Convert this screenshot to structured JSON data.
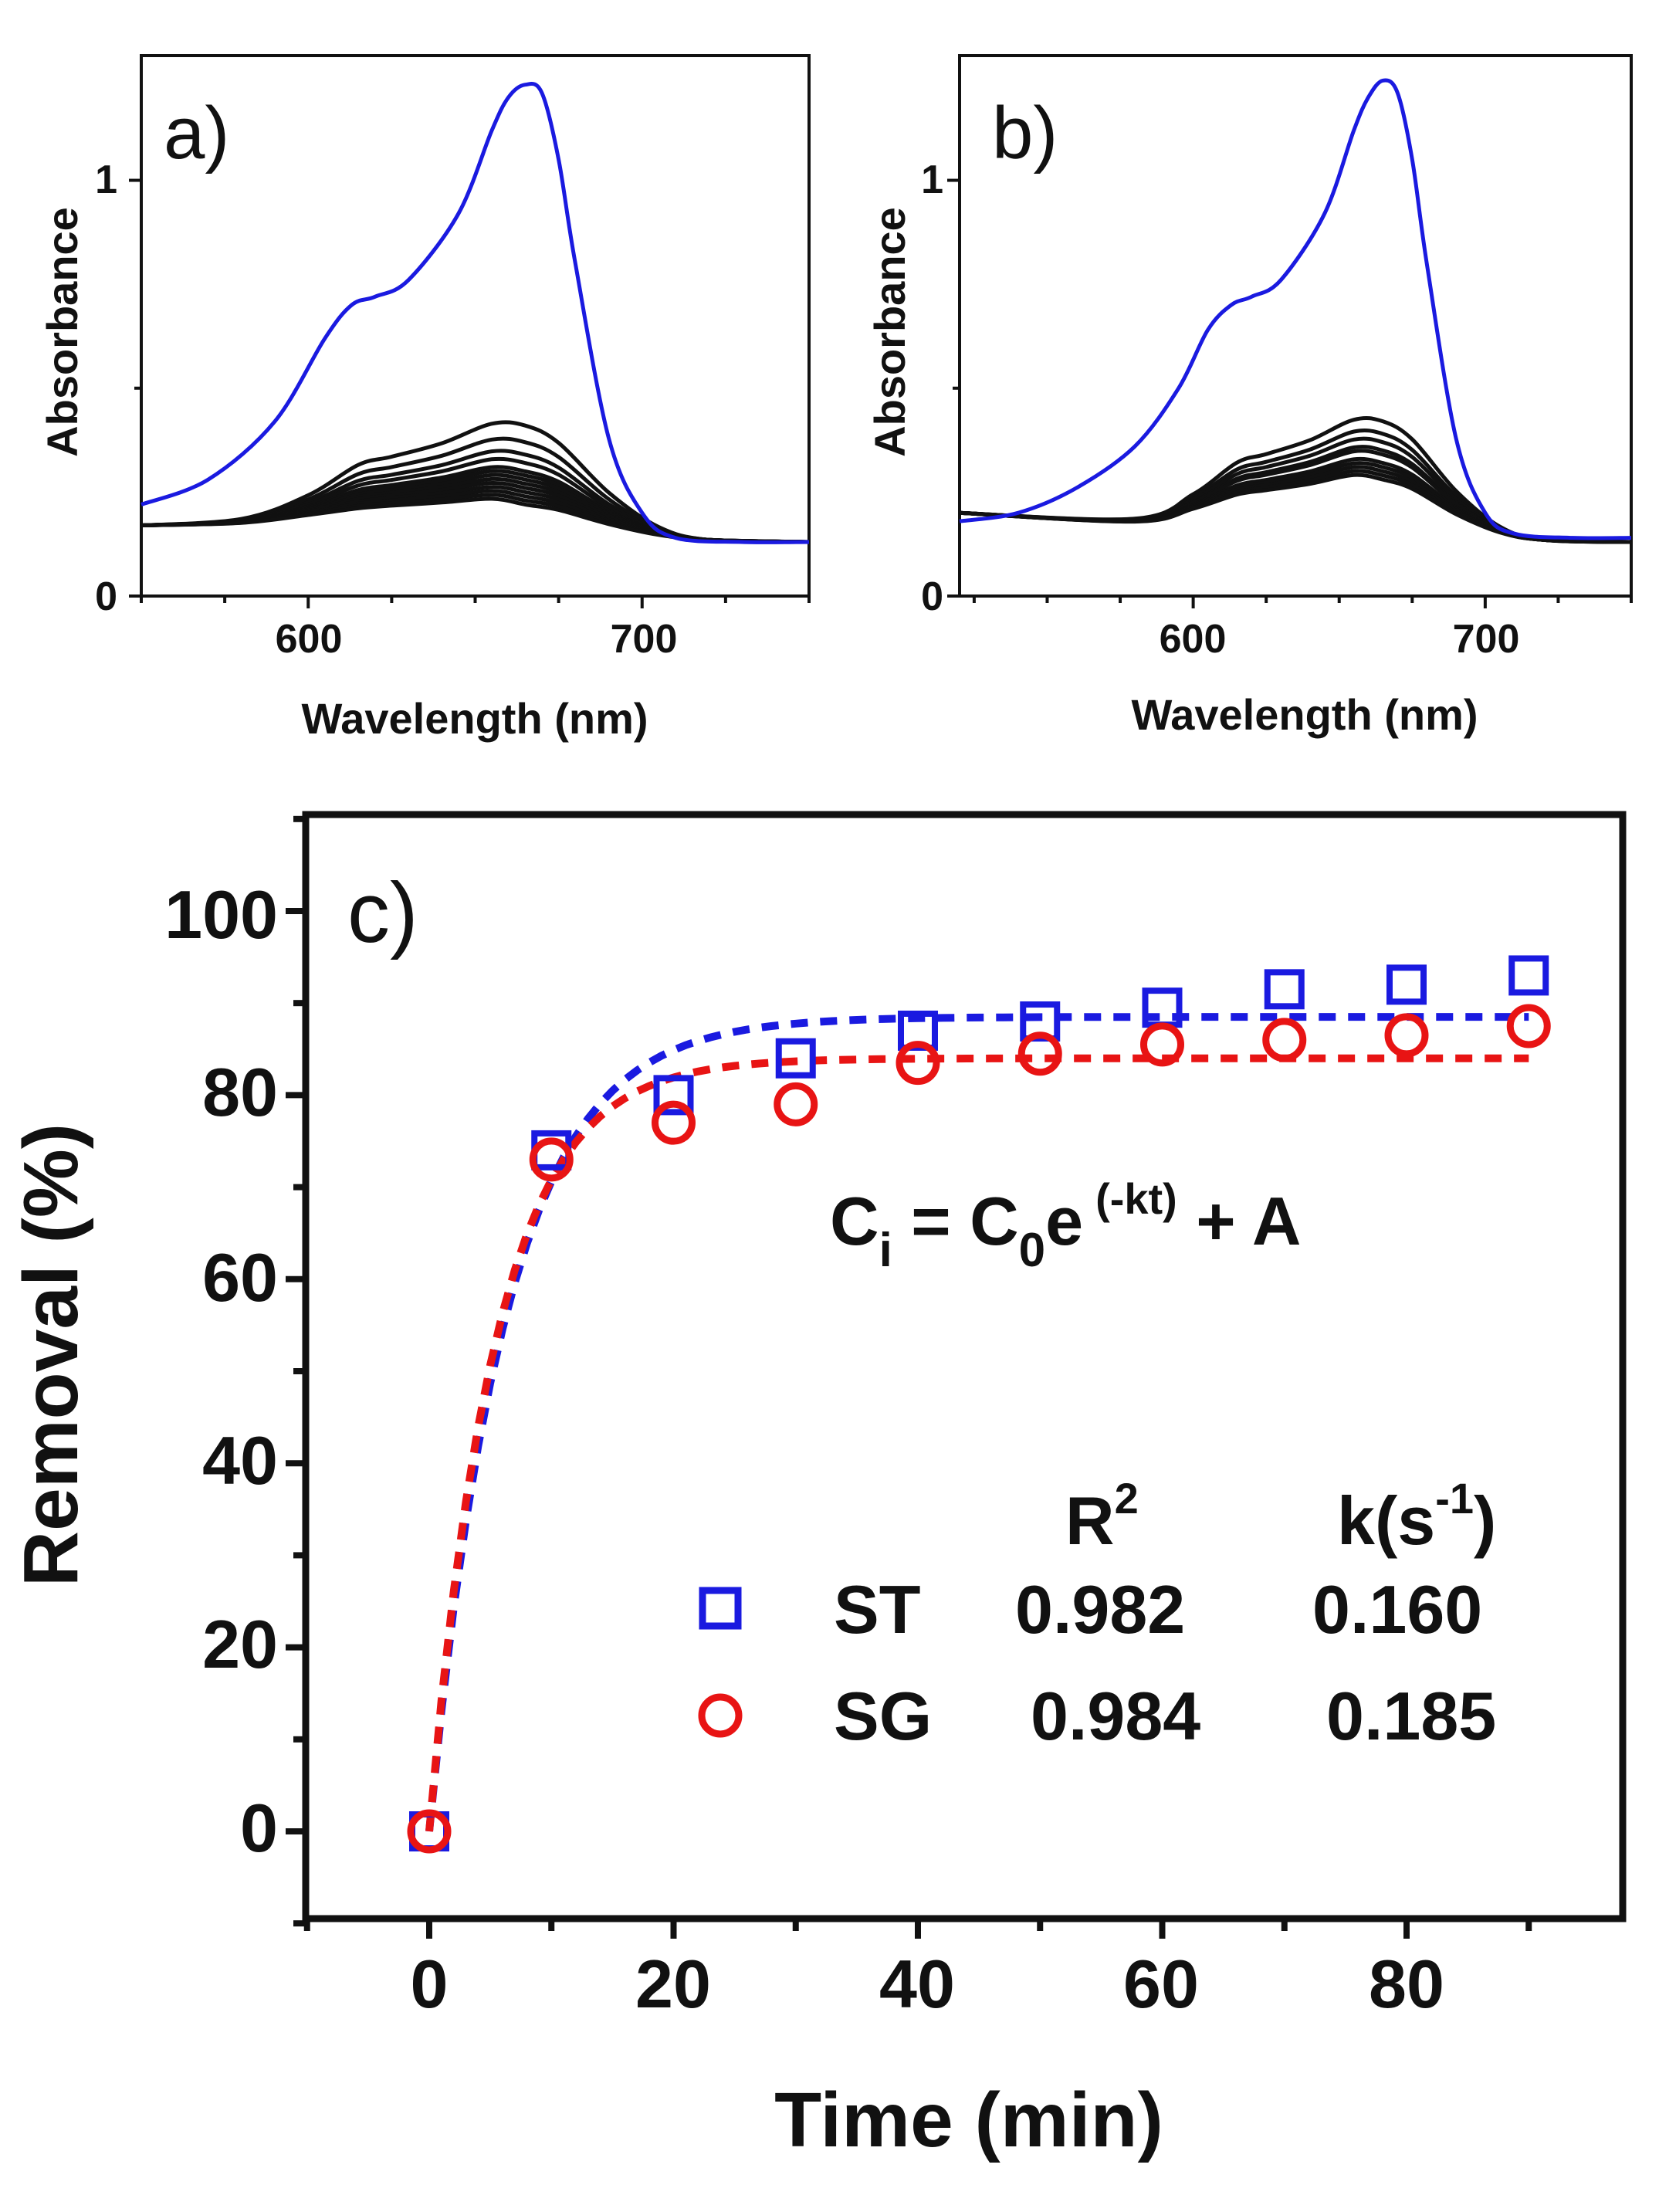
{
  "chart_data": [
    {
      "panel": "a)",
      "type": "line",
      "xlabel": "Wavelength (nm)",
      "ylabel": "Absorbance",
      "xlim": [
        550,
        750
      ],
      "ylim": [
        0,
        1.3
      ],
      "xticks": [
        600,
        700
      ],
      "yticks": [
        0,
        1
      ],
      "xtick_labels": [
        "600",
        "700"
      ],
      "ytick_labels": [
        "0",
        "1"
      ],
      "colors": {
        "initial": "#1a1ae0",
        "later": "#111111"
      },
      "initial_spectrum": {
        "name": "initial",
        "x": [
          550,
          570,
          590,
          605,
          613,
          620,
          630,
          645,
          655,
          660,
          665,
          670,
          675,
          680,
          690,
          700,
          710,
          730,
          750
        ],
        "y": [
          0.22,
          0.28,
          0.42,
          0.62,
          0.7,
          0.72,
          0.76,
          0.92,
          1.12,
          1.2,
          1.23,
          1.21,
          1.05,
          0.8,
          0.38,
          0.2,
          0.14,
          0.13,
          0.13
        ]
      },
      "later_spectra_peak_absorbance": [
        0.41,
        0.37,
        0.34,
        0.32,
        0.3,
        0.29,
        0.28,
        0.27,
        0.26,
        0.25,
        0.24,
        0.23,
        0.22
      ]
    },
    {
      "panel": "b)",
      "type": "line",
      "xlabel": "Wavelength (nm)",
      "ylabel": "Absorbance",
      "xlim": [
        520,
        750
      ],
      "ylim": [
        0,
        1.3
      ],
      "xticks": [
        600,
        700
      ],
      "yticks": [
        0,
        1
      ],
      "xtick_labels": [
        "600",
        "700"
      ],
      "ytick_labels": [
        "0",
        "1"
      ],
      "colors": {
        "initial": "#1a1ae0",
        "later": "#111111"
      },
      "initial_spectrum": {
        "name": "initial",
        "x": [
          520,
          540,
          560,
          580,
          595,
          605,
          613,
          620,
          630,
          645,
          655,
          660,
          665,
          670,
          675,
          680,
          690,
          700,
          710,
          730,
          750
        ],
        "y": [
          0.18,
          0.2,
          0.26,
          0.36,
          0.5,
          0.64,
          0.7,
          0.72,
          0.76,
          0.92,
          1.12,
          1.2,
          1.24,
          1.21,
          1.05,
          0.8,
          0.38,
          0.2,
          0.15,
          0.14,
          0.14
        ]
      },
      "later_spectra_peak_absorbance": [
        0.42,
        0.39,
        0.37,
        0.35,
        0.34,
        0.32,
        0.31,
        0.3,
        0.29,
        0.28
      ]
    },
    {
      "panel": "c)",
      "type": "scatter",
      "xlabel": "Time (min)",
      "ylabel": "Removal (%)",
      "xlim": [
        -10,
        100
      ],
      "ylim": [
        -10,
        110
      ],
      "xticks": [
        0,
        20,
        40,
        60,
        80
      ],
      "yticks": [
        0,
        20,
        40,
        60,
        80,
        100
      ],
      "xtick_labels": [
        "0",
        "20",
        "40",
        "60",
        "80"
      ],
      "ytick_labels": [
        "0",
        "20",
        "40",
        "60",
        "80",
        "100"
      ],
      "x": [
        0,
        10,
        20,
        30,
        40,
        50,
        60,
        70,
        80,
        90
      ],
      "series": [
        {
          "name": "ST",
          "color": "#1a1ae0",
          "marker": "square",
          "values": [
            0,
            74,
            80,
            84,
            87,
            88,
            89.5,
            91.5,
            92,
            93
          ],
          "fit": {
            "A": 88.5,
            "k": 0.16,
            "r2": "0.982",
            "k_text": "0.160"
          }
        },
        {
          "name": "SG",
          "color": "#e81414",
          "marker": "circle",
          "values": [
            0,
            73,
            77,
            79,
            83.5,
            84.5,
            85.5,
            86,
            86.5,
            87.5
          ],
          "fit": {
            "A": 84,
            "k": 0.185,
            "r2": "0.984",
            "k_text": "0.185"
          }
        }
      ],
      "equation": {
        "lhs": "C",
        "lhs_sub": "i",
        "eq": " = C",
        "c_sub": "0",
        "e": "e",
        "exp": "(-kt)",
        "tail": " + A"
      },
      "legend": {
        "r2_label": "R",
        "r2_sup": "2",
        "k_label": "k(s",
        "k_sup": "-1",
        "k_close": ")"
      }
    }
  ]
}
